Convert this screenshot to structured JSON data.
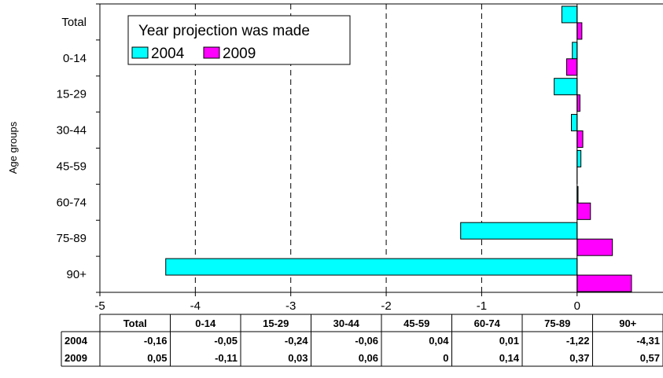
{
  "chart_data": {
    "type": "bar",
    "orientation": "horizontal",
    "categories": [
      "Total",
      "0-14",
      "15-29",
      "30-44",
      "45-59",
      "60-74",
      "75-89",
      "90+"
    ],
    "series": [
      {
        "name": "2004",
        "values": [
          -0.16,
          -0.05,
          -0.24,
          -0.06,
          0.04,
          0.01,
          -1.22,
          -4.31
        ],
        "color": "#00ffff"
      },
      {
        "name": "2009",
        "values": [
          0.05,
          -0.11,
          0.03,
          0.06,
          0,
          0.14,
          0.37,
          0.57
        ],
        "color": "#ff00ff"
      }
    ],
    "ylabel": "Age groups",
    "xlim": [
      -5,
      0.9
    ],
    "x_ticks": [
      "-5",
      "-4",
      "-3",
      "-2",
      "-1",
      "0"
    ],
    "x_tick_values": [
      -5,
      -4,
      -3,
      -2,
      -1,
      0
    ],
    "grid": "vertical dashed",
    "legend": {
      "title": "Year projection was made",
      "position": "top-left"
    },
    "table": {
      "header": [
        "Total",
        "0-14",
        "15-29",
        "30-44",
        "45-59",
        "60-74",
        "75-89",
        "90+"
      ],
      "rows": [
        {
          "label": "2004",
          "cells": [
            "-0,16",
            "-0,05",
            "-0,24",
            "-0,06",
            "0,04",
            "0,01",
            "-1,22",
            "-4,31"
          ]
        },
        {
          "label": "2009",
          "cells": [
            "0,05",
            "-0,11",
            "0,03",
            "0,06",
            "0",
            "0,14",
            "0,37",
            "0,57"
          ]
        }
      ]
    }
  }
}
